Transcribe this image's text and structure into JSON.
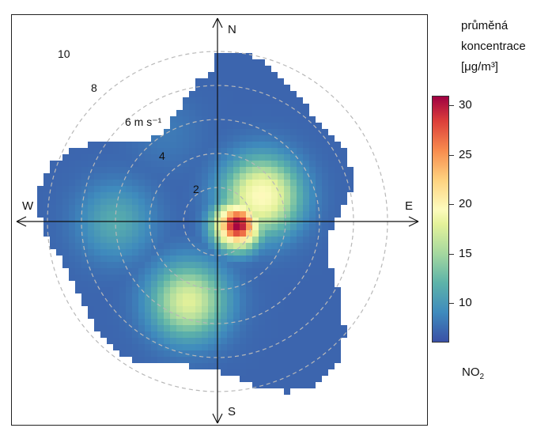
{
  "chart_data": {
    "type": "heatmap",
    "subtype": "polar-plot",
    "description_axes": {
      "directions": [
        "N",
        "E",
        "S",
        "W"
      ],
      "radial_ticks": [
        "2",
        "4",
        "6 m s⁻¹",
        "8",
        "10"
      ],
      "radial_values": [
        2,
        4,
        6,
        8,
        10
      ]
    },
    "colorbar": {
      "title_lines": [
        "průměná",
        "koncentrace",
        "[μg/m³]"
      ],
      "ticks": [
        10,
        15,
        20,
        25,
        30
      ],
      "range": [
        6,
        31
      ],
      "colors": [
        "#3a50a6",
        "#3f8bbd",
        "#5db3a9",
        "#a5d89f",
        "#e4f29a",
        "#fdfbbd",
        "#fed27f",
        "#f88c4e",
        "#dc3f3a",
        "#9f0142"
      ]
    },
    "pollutant": "NO",
    "pollutant_sub": "2",
    "grid": true,
    "legend_position": "right",
    "hotspots": [
      {
        "direction_deg": 100,
        "speed": 1.2,
        "value": 31
      },
      {
        "direction_deg": 60,
        "speed": 3,
        "value": 20
      },
      {
        "direction_deg": 200,
        "speed": 5,
        "value": 17
      },
      {
        "direction_deg": 270,
        "speed": 6,
        "value": 11
      },
      {
        "direction_deg": 330,
        "speed": 6,
        "value": 8
      }
    ]
  }
}
